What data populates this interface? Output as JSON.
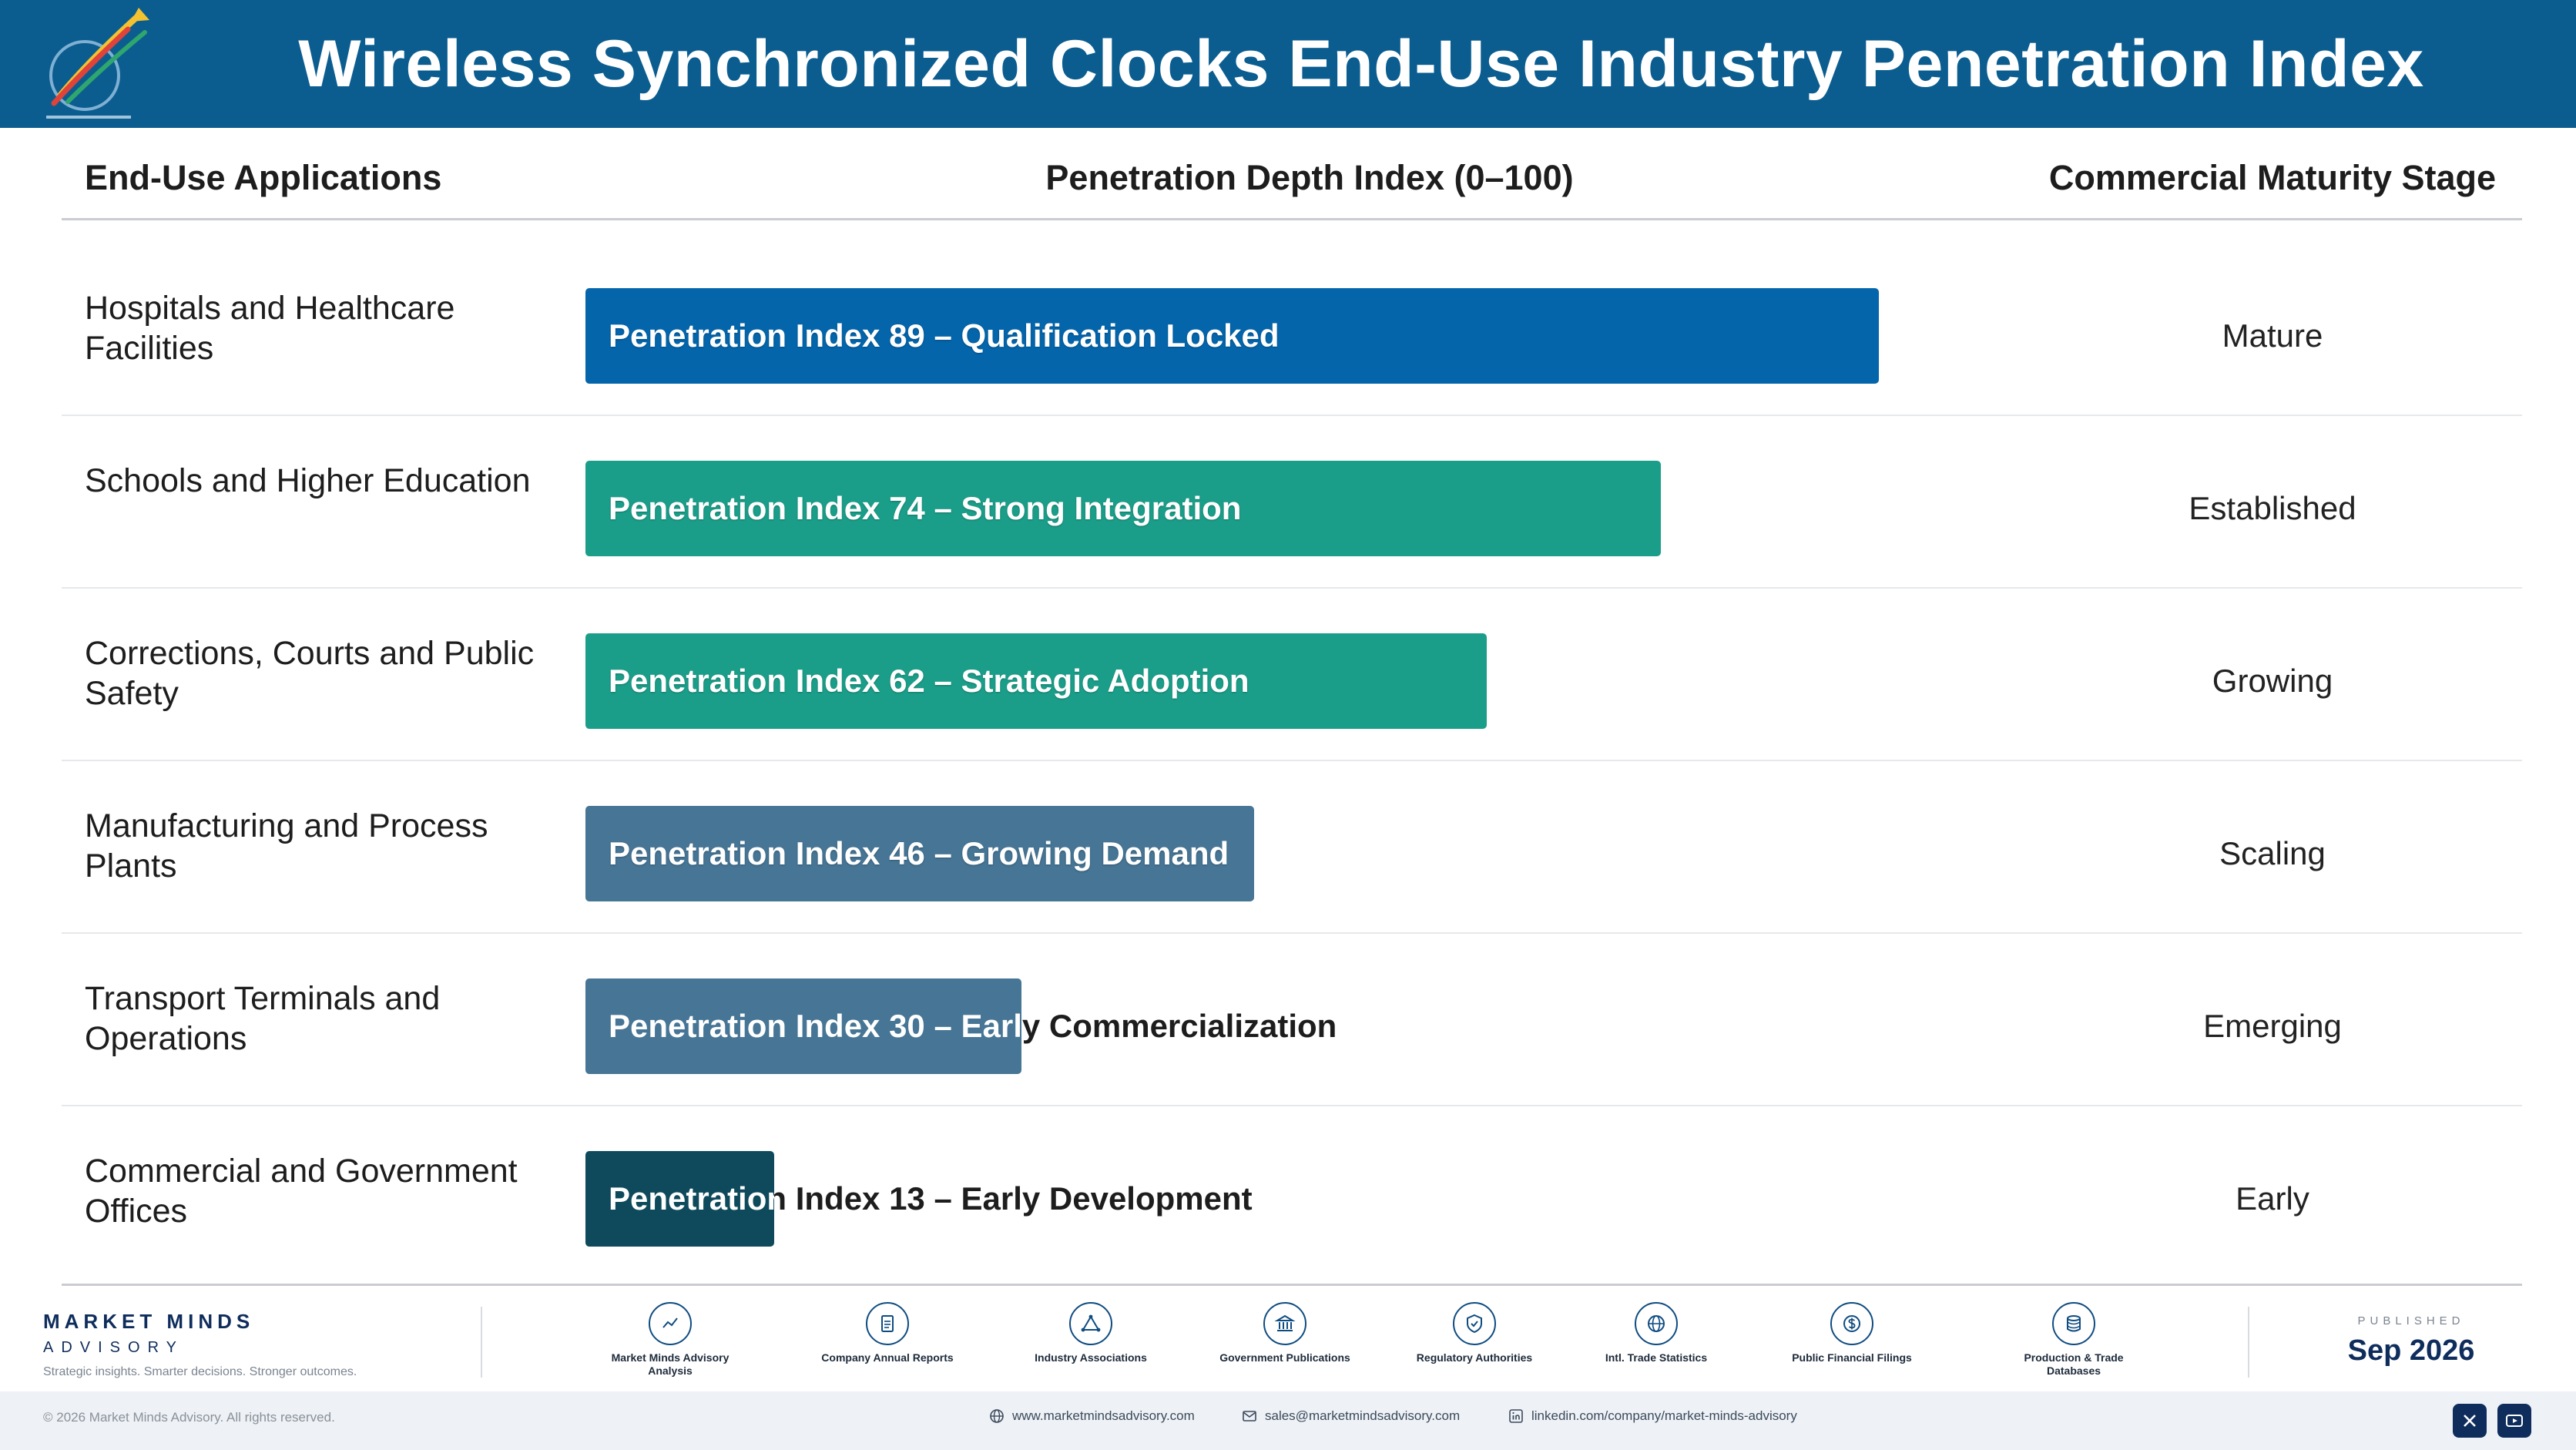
{
  "header": {
    "title": "Wireless Synchronized Clocks End-Use Industry Penetration Index"
  },
  "columns": {
    "applications": "End-Use Applications",
    "index": "Penetration Depth Index (0–100)",
    "stage": "Commercial Maturity Stage"
  },
  "chart_data": {
    "type": "bar",
    "orientation": "horizontal",
    "xlim": [
      0,
      100
    ],
    "categories": [
      "Hospitals and Healthcare Facilities",
      "Schools and Higher Education",
      "Corrections, Courts and Public Safety",
      "Manufacturing and Process Plants",
      "Transport Terminals and Operations",
      "Commercial and Government Offices"
    ],
    "values": [
      89,
      74,
      62,
      46,
      30,
      13
    ],
    "bar_labels": [
      "Penetration Index 89 – Qualification Locked",
      "Penetration Index 74 – Strong Integration",
      "Penetration Index 62 – Strategic Adoption",
      "Penetration Index 46 – Growing Demand",
      "Penetration Index 30 – Early Commercialization",
      "Penetration Index 13 – Early Development"
    ],
    "stages": [
      "Mature",
      "Established",
      "Growing",
      "Scaling",
      "Emerging",
      "Early"
    ],
    "colors": [
      "#0465ab",
      "#1b9e89",
      "#1b9e89",
      "#467595",
      "#467595",
      "#0e4a5b"
    ]
  },
  "footer": {
    "brand_name": "MARKET MINDS",
    "brand_sub": "ADVISORY",
    "brand_tagline": "Strategic insights. Smarter decisions. Stronger outcomes.",
    "sources": [
      {
        "label": "Market Minds Advisory Analysis",
        "icon": "trend-chart-icon"
      },
      {
        "label": "Company Annual Reports",
        "icon": "document-icon"
      },
      {
        "label": "Industry Associations",
        "icon": "network-icon"
      },
      {
        "label": "Government Publications",
        "icon": "government-building-icon"
      },
      {
        "label": "Regulatory Authorities",
        "icon": "shield-check-icon"
      },
      {
        "label": "Intl. Trade Statistics",
        "icon": "globe-icon"
      },
      {
        "label": "Public Financial Filings",
        "icon": "dollar-icon"
      },
      {
        "label": "Production & Trade Databases",
        "icon": "database-icon"
      }
    ],
    "published_label": "PUBLISHED",
    "published_date": "Sep 2026",
    "copyright": "© 2026 Market Minds Advisory. All rights reserved.",
    "website": "www.marketmindsadvisory.com",
    "email": "sales@marketmindsadvisory.com",
    "linkedin": "linkedin.com/company/market-minds-advisory"
  }
}
